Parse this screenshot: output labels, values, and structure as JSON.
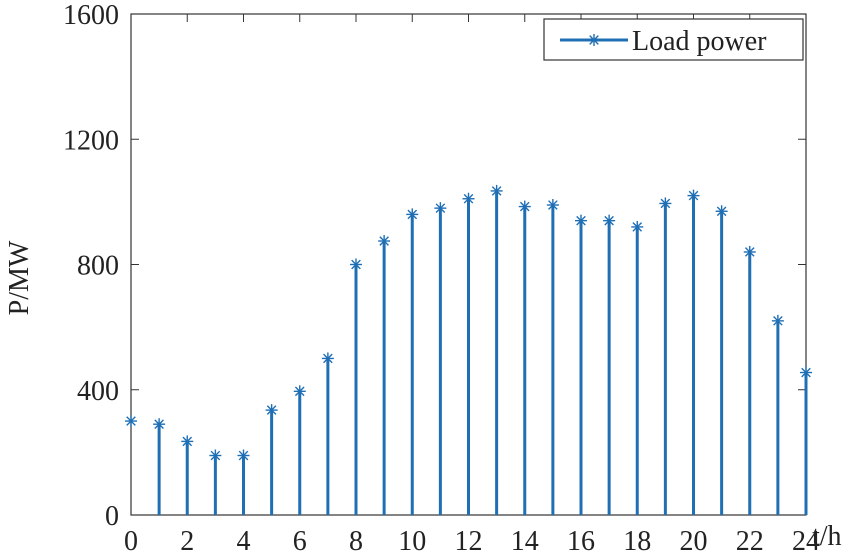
{
  "chart_data": {
    "type": "bar",
    "title": "",
    "xlabel": "t/h",
    "ylabel": "P/MW",
    "xlim": [
      0,
      24
    ],
    "ylim": [
      0,
      1600
    ],
    "xticks": [
      0,
      2,
      4,
      6,
      8,
      10,
      12,
      14,
      16,
      18,
      20,
      22,
      24
    ],
    "yticks": [
      0,
      400,
      800,
      1200,
      1600
    ],
    "grid": false,
    "legend_position": "top-right",
    "series": [
      {
        "name": "Load power",
        "color": "#1f6fb5",
        "marker": "asterisk",
        "x": [
          0,
          1,
          2,
          3,
          4,
          5,
          6,
          7,
          8,
          9,
          10,
          11,
          12,
          13,
          14,
          15,
          16,
          17,
          18,
          19,
          20,
          21,
          22,
          23,
          24
        ],
        "values": [
          300,
          290,
          235,
          190,
          190,
          335,
          395,
          500,
          800,
          875,
          960,
          980,
          1010,
          1035,
          985,
          990,
          940,
          940,
          920,
          995,
          1020,
          970,
          840,
          620,
          455
        ]
      }
    ]
  }
}
